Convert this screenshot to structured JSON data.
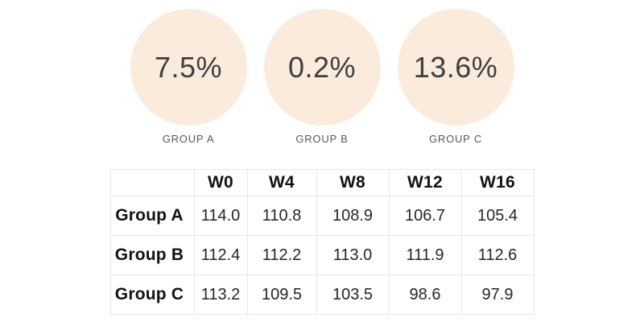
{
  "stats": [
    {
      "value": "7.5%",
      "label": "GROUP A"
    },
    {
      "value": "0.2%",
      "label": "GROUP B"
    },
    {
      "value": "13.6%",
      "label": "GROUP C"
    }
  ],
  "table": {
    "columns": [
      "W0",
      "W4",
      "W8",
      "W12",
      "W16"
    ],
    "rows": [
      {
        "label": "Group A",
        "values": [
          "114.0",
          "110.8",
          "108.9",
          "106.7",
          "105.4"
        ]
      },
      {
        "label": "Group B",
        "values": [
          "112.4",
          "112.2",
          "113.0",
          "111.9",
          "112.6"
        ]
      },
      {
        "label": "Group C",
        "values": [
          "113.2",
          "109.5",
          "103.5",
          "98.6",
          "97.9"
        ]
      }
    ]
  },
  "chart_data": {
    "type": "table",
    "categories": [
      "W0",
      "W4",
      "W8",
      "W12",
      "W16"
    ],
    "series": [
      {
        "name": "Group A",
        "values": [
          114.0,
          110.8,
          108.9,
          106.7,
          105.4
        ]
      },
      {
        "name": "Group B",
        "values": [
          112.4,
          112.2,
          113.0,
          111.9,
          112.6
        ]
      },
      {
        "name": "Group C",
        "values": [
          113.2,
          109.5,
          103.5,
          98.6,
          97.9
        ]
      }
    ],
    "stat_badges": [
      {
        "label": "GROUP A",
        "value": 7.5,
        "unit": "%"
      },
      {
        "label": "GROUP B",
        "value": 0.2,
        "unit": "%"
      },
      {
        "label": "GROUP C",
        "value": 13.6,
        "unit": "%"
      }
    ]
  },
  "colors": {
    "circle_fill": "#faebdc",
    "percent_text": "#3f3f3f",
    "group_label_text": "#58585a",
    "table_border": "#e7e7e7",
    "table_bold_text": "#121212",
    "table_value_text": "#262626",
    "background": "#ffffff"
  }
}
